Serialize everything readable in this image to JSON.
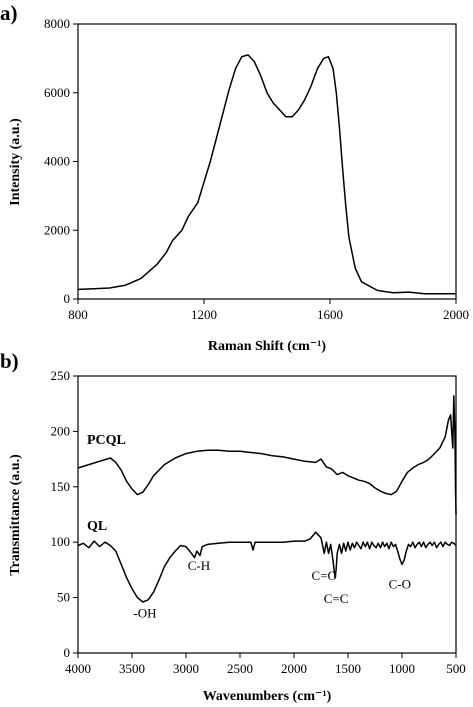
{
  "chart_data": [
    {
      "panel": "a)",
      "type": "line",
      "xlabel": "Raman Shift (cm⁻¹)",
      "ylabel": "Intensity (a.u.)",
      "xlim": [
        800,
        2000
      ],
      "ylim": [
        0,
        8000
      ],
      "xticks": [
        800,
        1200,
        1600,
        2000
      ],
      "yticks": [
        0,
        2000,
        4000,
        6000,
        8000
      ],
      "grid": false,
      "series": [
        {
          "x": [
            800,
            850,
            900,
            950,
            1000,
            1050,
            1080,
            1100,
            1130,
            1150,
            1180,
            1200,
            1220,
            1240,
            1260,
            1280,
            1300,
            1320,
            1340,
            1360,
            1380,
            1400,
            1420,
            1440,
            1460,
            1480,
            1500,
            1520,
            1540,
            1560,
            1580,
            1595,
            1610,
            1620,
            1630,
            1640,
            1650,
            1660,
            1680,
            1700,
            1750,
            1800,
            1850,
            1900,
            2000
          ],
          "y": [
            280,
            300,
            320,
            400,
            600,
            1000,
            1350,
            1700,
            2000,
            2400,
            2800,
            3400,
            4000,
            4700,
            5400,
            6100,
            6700,
            7050,
            7100,
            6900,
            6500,
            6000,
            5700,
            5500,
            5300,
            5300,
            5500,
            5800,
            6200,
            6700,
            7000,
            7050,
            6700,
            6000,
            5000,
            3800,
            2700,
            1800,
            900,
            500,
            250,
            180,
            200,
            150,
            150
          ]
        }
      ]
    },
    {
      "panel": "b)",
      "type": "line",
      "xlabel": "Wavenumbers (cm⁻¹)",
      "ylabel": "Transmittance (a.u.)",
      "xlim": [
        4000,
        500
      ],
      "ylim": [
        0,
        250
      ],
      "xticks": [
        4000,
        3500,
        3000,
        2500,
        2000,
        1500,
        1000,
        500
      ],
      "yticks": [
        0,
        50,
        100,
        150,
        200,
        250
      ],
      "grid": false,
      "series": [
        {
          "name": "PCQL",
          "x": [
            4000,
            3900,
            3800,
            3700,
            3650,
            3600,
            3550,
            3500,
            3450,
            3400,
            3350,
            3300,
            3200,
            3100,
            3000,
            2900,
            2800,
            2700,
            2600,
            2500,
            2400,
            2300,
            2200,
            2100,
            2000,
            1900,
            1800,
            1750,
            1700,
            1650,
            1600,
            1550,
            1500,
            1450,
            1400,
            1350,
            1300,
            1250,
            1200,
            1150,
            1100,
            1050,
            1000,
            950,
            900,
            850,
            800,
            750,
            700,
            650,
            600,
            570,
            550,
            540,
            530,
            520,
            510,
            505,
            500
          ],
          "y": [
            167,
            170,
            173,
            176,
            172,
            165,
            155,
            148,
            143,
            145,
            152,
            160,
            170,
            176,
            180,
            182,
            183,
            183,
            182,
            182,
            181,
            180,
            178,
            177,
            175,
            173,
            172,
            175,
            168,
            166,
            161,
            163,
            160,
            158,
            156,
            155,
            153,
            149,
            146,
            144,
            143,
            146,
            155,
            163,
            167,
            170,
            172,
            175,
            180,
            185,
            195,
            210,
            215,
            200,
            185,
            232,
            200,
            150,
            125
          ]
        },
        {
          "name": "QL",
          "x": [
            4000,
            3950,
            3900,
            3850,
            3800,
            3750,
            3700,
            3650,
            3600,
            3550,
            3500,
            3450,
            3400,
            3350,
            3300,
            3250,
            3200,
            3150,
            3100,
            3050,
            3000,
            2950,
            2920,
            2900,
            2870,
            2850,
            2800,
            2700,
            2600,
            2500,
            2400,
            2380,
            2360,
            2300,
            2200,
            2100,
            2000,
            1900,
            1850,
            1800,
            1750,
            1720,
            1700,
            1680,
            1660,
            1640,
            1620,
            1610,
            1600,
            1580,
            1560,
            1540,
            1520,
            1500,
            1480,
            1460,
            1440,
            1420,
            1400,
            1380,
            1360,
            1340,
            1320,
            1300,
            1280,
            1260,
            1240,
            1220,
            1200,
            1180,
            1160,
            1140,
            1120,
            1100,
            1080,
            1060,
            1040,
            1020,
            1000,
            980,
            960,
            940,
            920,
            900,
            880,
            860,
            840,
            820,
            800,
            780,
            760,
            740,
            720,
            700,
            680,
            660,
            640,
            620,
            600,
            580,
            560,
            540,
            520,
            500
          ],
          "y": [
            97,
            99,
            95,
            101,
            96,
            100,
            97,
            92,
            80,
            68,
            58,
            50,
            46,
            48,
            55,
            66,
            78,
            86,
            92,
            97,
            96,
            90,
            86,
            92,
            88,
            96,
            98,
            99,
            100,
            100,
            100,
            93,
            100,
            100,
            100,
            100,
            101,
            101,
            103,
            109,
            104,
            90,
            100,
            90,
            98,
            84,
            68,
            75,
            90,
            98,
            90,
            99,
            92,
            100,
            93,
            99,
            95,
            100,
            97,
            94,
            100,
            96,
            100,
            94,
            100,
            97,
            95,
            99,
            95,
            100,
            96,
            99,
            94,
            100,
            96,
            98,
            92,
            85,
            80,
            84,
            92,
            98,
            96,
            100,
            95,
            98,
            100,
            96,
            100,
            95,
            98,
            100,
            97,
            100,
            95,
            98,
            100,
            96,
            100,
            98,
            97,
            100,
            99,
            97
          ]
        }
      ],
      "annotations": [
        {
          "text": "-OH",
          "x": 3380,
          "y": 32
        },
        {
          "text": "C-H",
          "x": 2880,
          "y": 75
        },
        {
          "text": "C=O",
          "x": 1720,
          "y": 66
        },
        {
          "text": "C=C",
          "x": 1610,
          "y": 45
        },
        {
          "text": "C-O",
          "x": 1020,
          "y": 58
        }
      ]
    }
  ]
}
